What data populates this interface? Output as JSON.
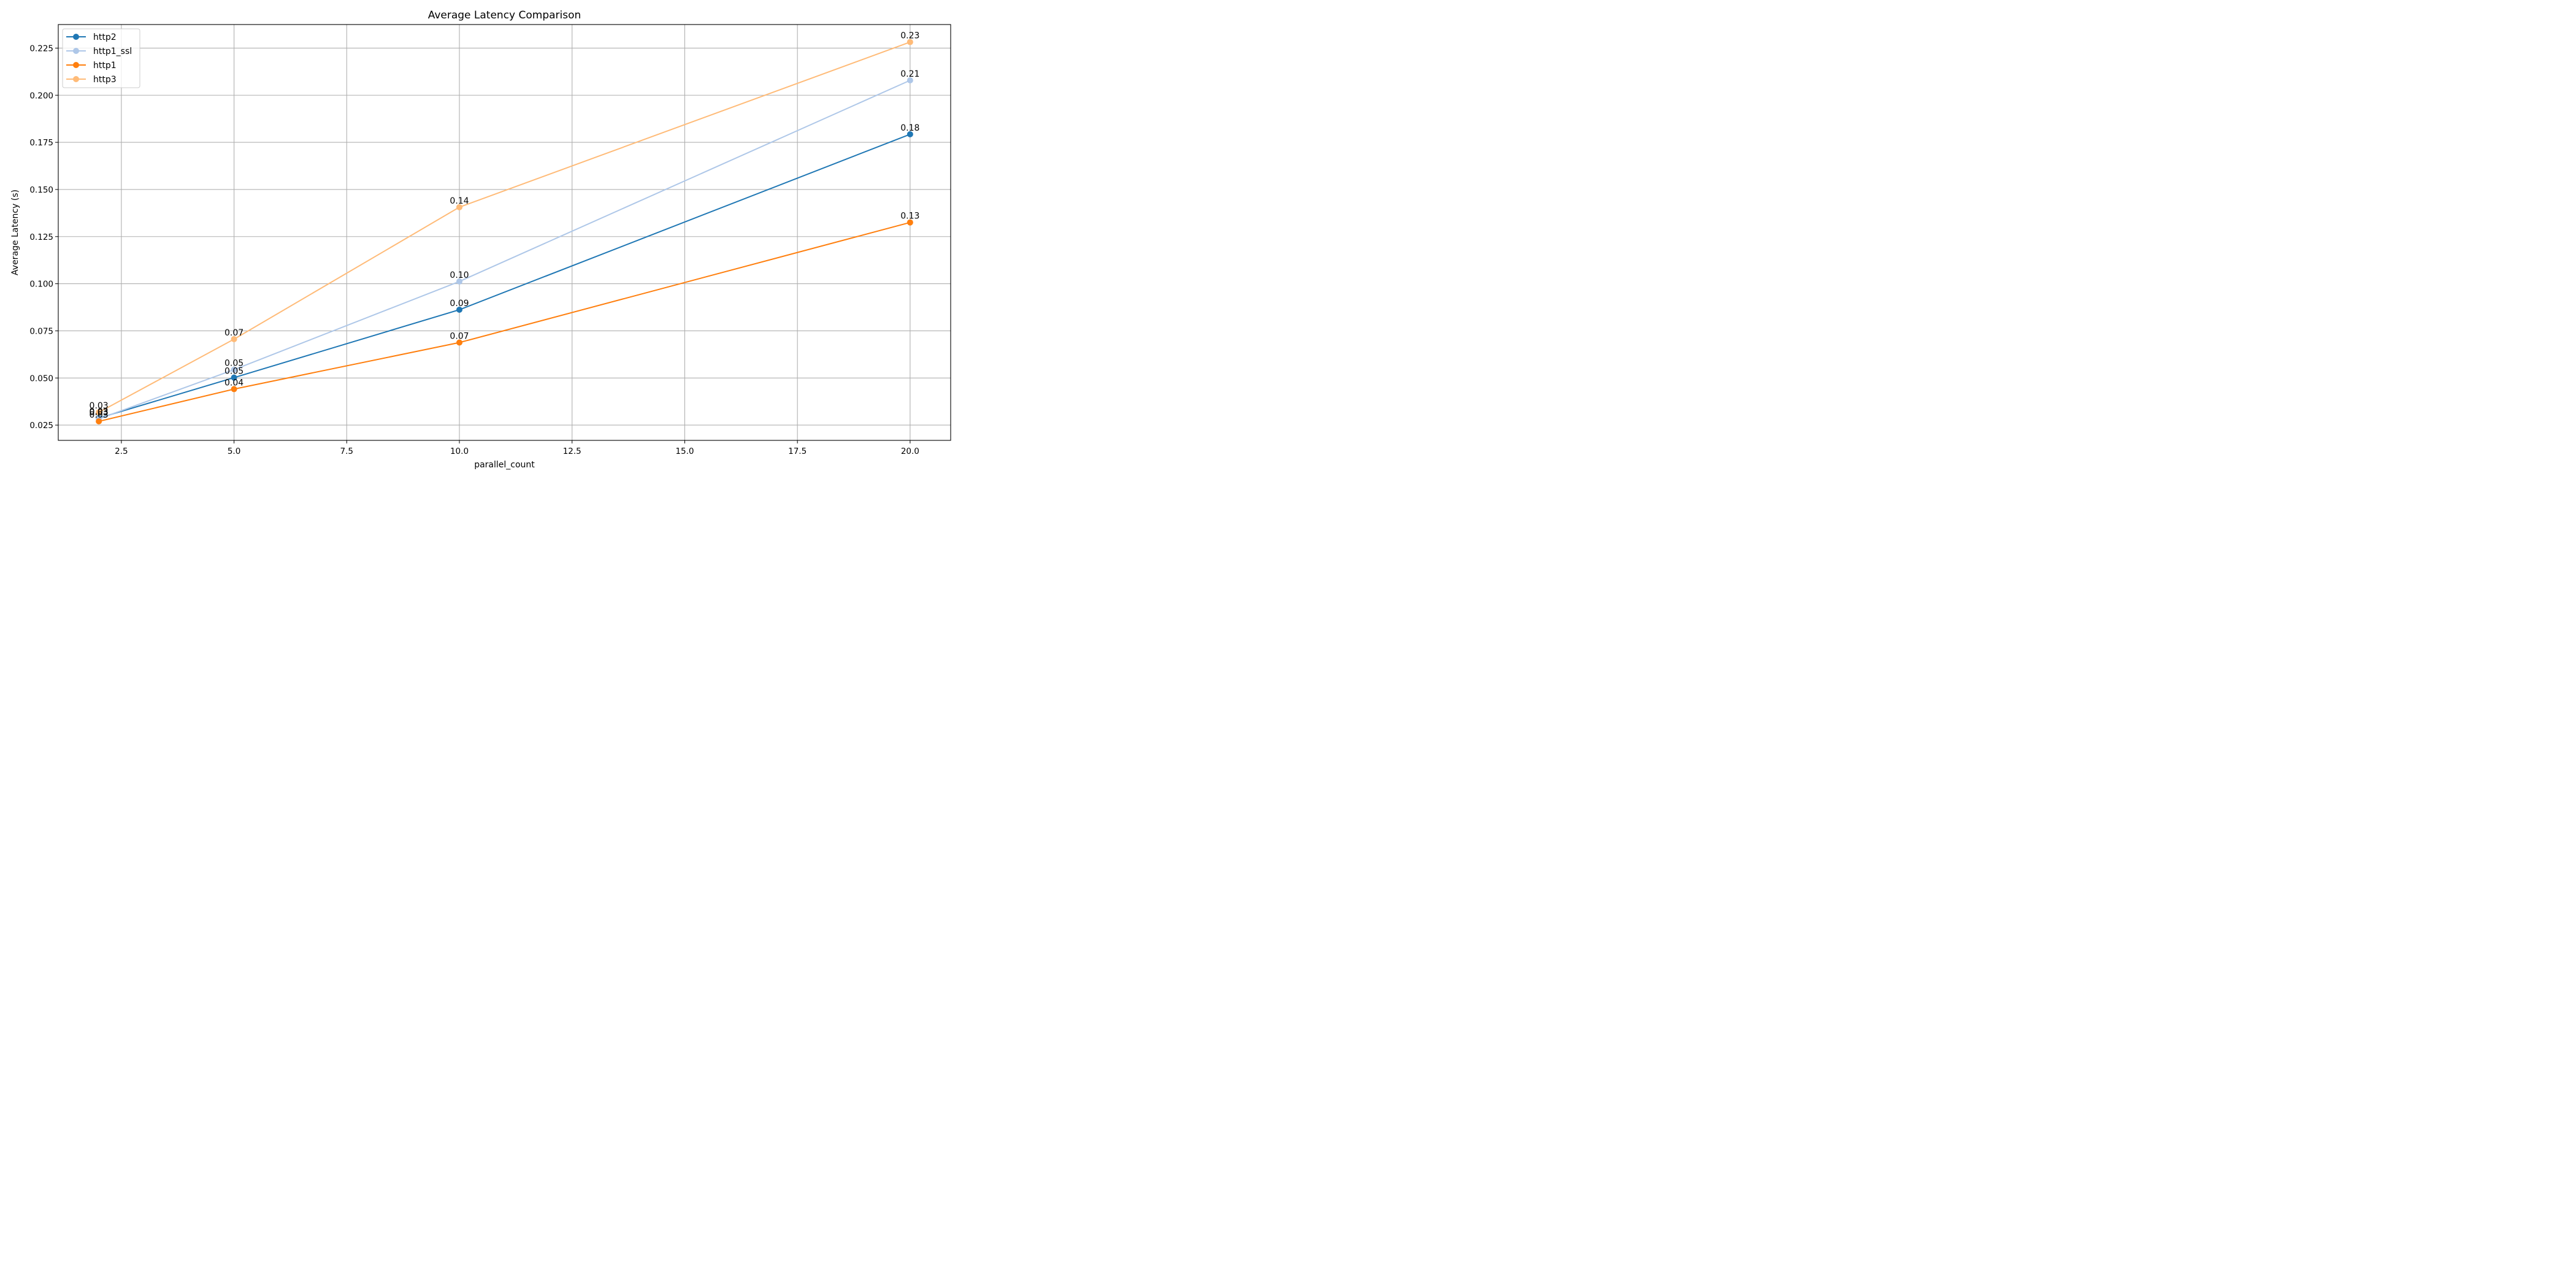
{
  "chart_data": {
    "type": "line",
    "title": "Average Latency Comparison",
    "xlabel": "parallel_count",
    "ylabel": "Average Latency (s)",
    "xlim": [
      1.1,
      20.9
    ],
    "ylim": [
      0.0169,
      0.2375
    ],
    "x_ticks": [
      2.5,
      5.0,
      7.5,
      10.0,
      12.5,
      15.0,
      17.5,
      20.0
    ],
    "x_tick_labels": [
      "2.5",
      "5.0",
      "7.5",
      "10.0",
      "12.5",
      "15.0",
      "17.5",
      "20.0"
    ],
    "y_ticks": [
      0.025,
      0.05,
      0.075,
      0.1,
      0.125,
      0.15,
      0.175,
      0.2,
      0.225
    ],
    "y_tick_labels": [
      "0.025",
      "0.050",
      "0.075",
      "0.100",
      "0.125",
      "0.150",
      "0.175",
      "0.200",
      "0.225"
    ],
    "grid": true,
    "legend_position": "top-left",
    "x": [
      2,
      5,
      10,
      20
    ],
    "series": [
      {
        "name": "http2",
        "color": "#1f77b4",
        "values": [
          0.0287,
          0.0502,
          0.0862,
          0.1793
        ],
        "labels": [
          "0.03",
          "0.05",
          "0.09",
          "0.18"
        ]
      },
      {
        "name": "http1_ssl",
        "color": "#aec7e8",
        "values": [
          0.0283,
          0.0544,
          0.1012,
          0.2079
        ],
        "labels": [
          "0.03",
          "0.05",
          "0.10",
          "0.21"
        ]
      },
      {
        "name": "http1",
        "color": "#ff7f0e",
        "values": [
          0.027,
          0.0441,
          0.0688,
          0.1325
        ],
        "labels": [
          "0.03",
          "0.04",
          "0.07",
          "0.13"
        ]
      },
      {
        "name": "http3",
        "color": "#ffbb78",
        "values": [
          0.0318,
          0.0706,
          0.1406,
          0.2282
        ],
        "labels": [
          "0.03",
          "0.07",
          "0.14",
          "0.23"
        ]
      }
    ]
  }
}
